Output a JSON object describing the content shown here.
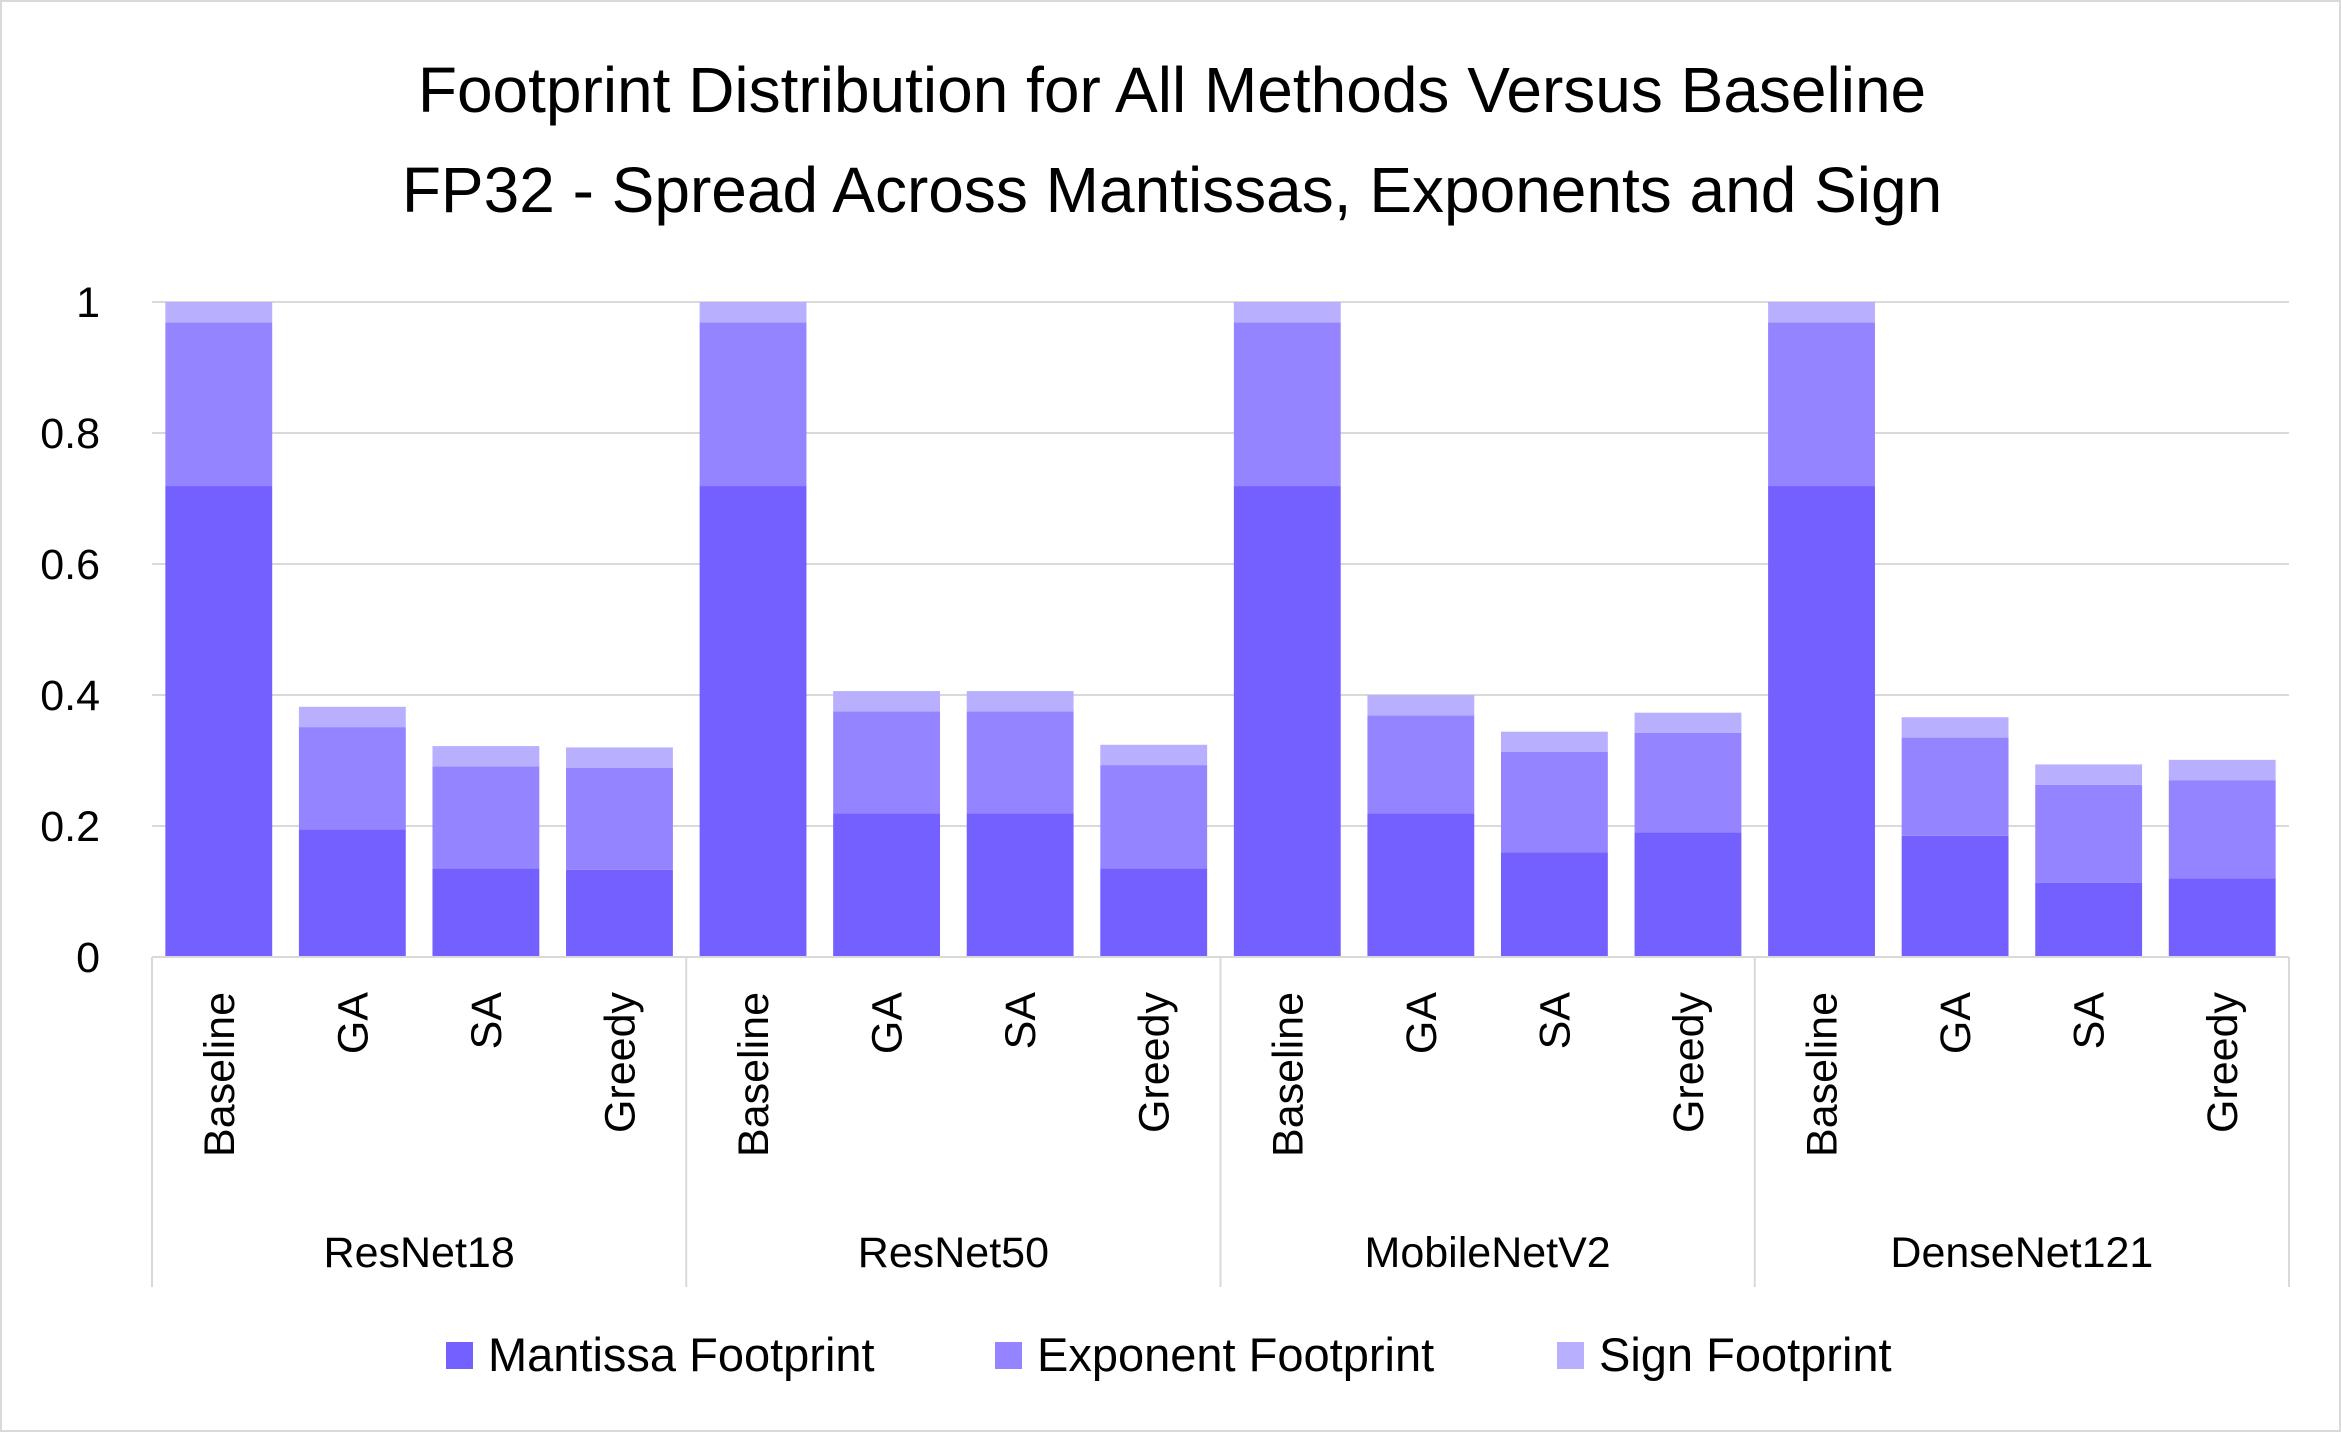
{
  "chart_data": {
    "type": "bar",
    "stacked": true,
    "title": "Footprint Distribution for All Methods Versus Baseline",
    "subtitle": "FP32 - Spread Across Mantissas, Exponents and Sign",
    "ylim": [
      0,
      1
    ],
    "yticks": [
      0,
      0.2,
      0.4,
      0.6,
      0.8,
      1
    ],
    "ytick_labels": [
      "0",
      "0.2",
      "0.4",
      "0.6",
      "0.8",
      "1"
    ],
    "grid": true,
    "legend_position": "bottom",
    "groups": [
      {
        "name": "ResNet18",
        "categories": [
          "Baseline",
          "GA",
          "SA",
          "Greedy"
        ]
      },
      {
        "name": "ResNet50",
        "categories": [
          "Baseline",
          "GA",
          "SA",
          "Greedy"
        ]
      },
      {
        "name": "MobileNetV2",
        "categories": [
          "Baseline",
          "GA",
          "SA",
          "Greedy"
        ]
      },
      {
        "name": "DenseNet121",
        "categories": [
          "Baseline",
          "GA",
          "SA",
          "Greedy"
        ]
      }
    ],
    "series": [
      {
        "name": "Mantissa Footprint",
        "color": "#7460ff",
        "values": [
          0.719,
          0.195,
          0.135,
          0.133,
          0.719,
          0.219,
          0.219,
          0.135,
          0.719,
          0.219,
          0.16,
          0.19,
          0.719,
          0.185,
          0.113,
          0.12
        ]
      },
      {
        "name": "Exponent Footprint",
        "color": "#9584ff",
        "values": [
          0.25,
          0.156,
          0.156,
          0.156,
          0.25,
          0.156,
          0.156,
          0.158,
          0.25,
          0.15,
          0.153,
          0.152,
          0.25,
          0.15,
          0.15,
          0.15
        ]
      },
      {
        "name": "Sign Footprint",
        "color": "#b8b0ff",
        "values": [
          0.031,
          0.031,
          0.031,
          0.031,
          0.031,
          0.031,
          0.031,
          0.031,
          0.031,
          0.031,
          0.031,
          0.031,
          0.031,
          0.031,
          0.031,
          0.031
        ]
      }
    ]
  }
}
